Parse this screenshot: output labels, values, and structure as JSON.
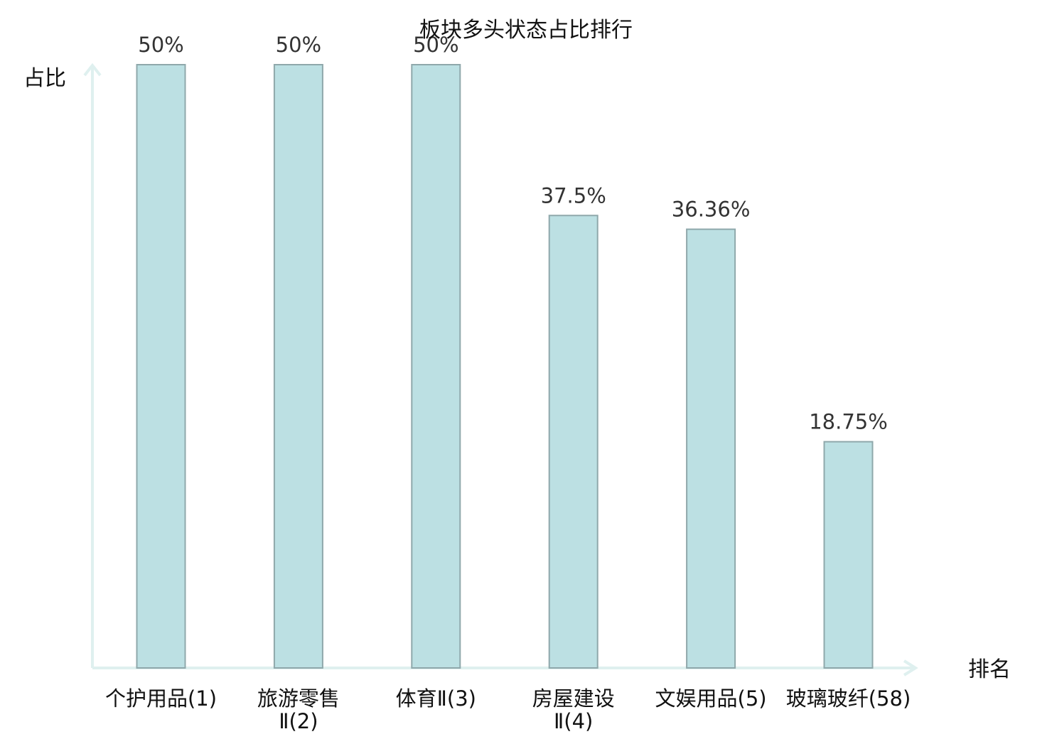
{
  "chart_data": {
    "type": "bar",
    "title": "板块多头状态占比排行",
    "xlabel": "排名",
    "ylabel": "占比",
    "ylim": [
      0,
      50
    ],
    "grid": false,
    "categories": [
      [
        "个护用品(1)"
      ],
      [
        "旅游零售",
        "Ⅱ(2)"
      ],
      [
        "体育Ⅱ(3)"
      ],
      [
        "房屋建设",
        "Ⅱ(4)"
      ],
      [
        "文娱用品(5)"
      ],
      [
        "玻璃玻纤(58)"
      ]
    ],
    "values": [
      50,
      50,
      50,
      37.5,
      36.36,
      18.75
    ],
    "value_labels": [
      "50%",
      "50%",
      "50%",
      "37.5%",
      "36.36%",
      "18.75%"
    ],
    "highlight_index": 5,
    "colors": {
      "bar_fill": "#bce0e3",
      "bar_stroke": "#8fa8ab",
      "axis": "#dff0ef",
      "highlight_label": "#e8191c",
      "label_text": "#111111",
      "value_text": "#333333"
    }
  }
}
